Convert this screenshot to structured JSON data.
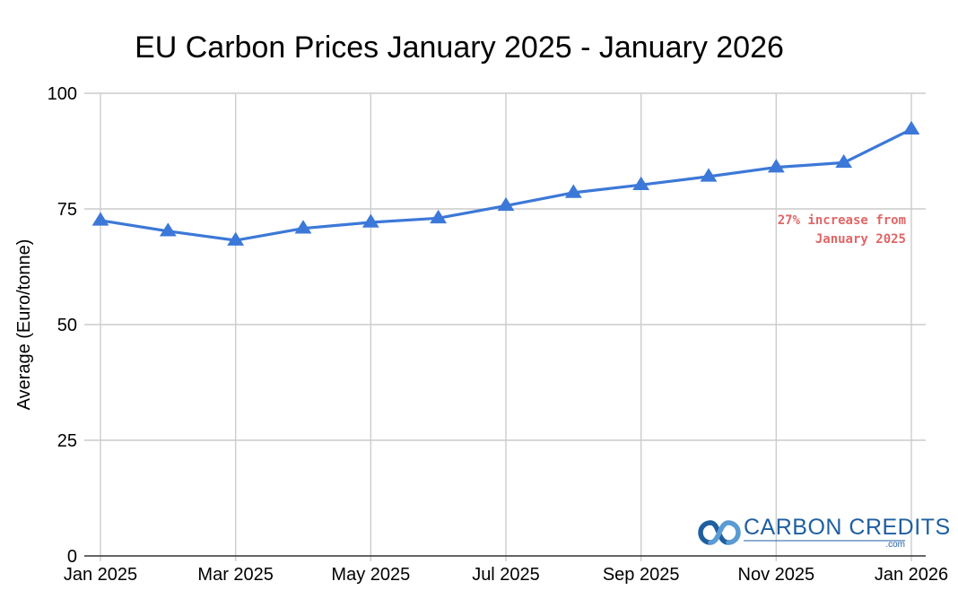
{
  "chart_data": {
    "type": "line",
    "title": "EU Carbon Prices January 2025 - January 2026",
    "xlabel": "",
    "ylabel": "Average (Euro/tonne)",
    "ylim": [
      0,
      100
    ],
    "yticks": [
      0,
      25,
      50,
      75,
      100
    ],
    "grid": true,
    "legend": "none",
    "x": [
      "Jan 2025",
      "Feb 2025",
      "Mar 2025",
      "Apr 2025",
      "May 2025",
      "Jun 2025",
      "Jul 2025",
      "Aug 2025",
      "Sep 2025",
      "Oct 2025",
      "Nov 2025",
      "Dec 2025",
      "Jan 2026"
    ],
    "x_tick_labels": [
      "Jan 2025",
      "",
      "Mar 2025",
      "",
      "May 2025",
      "",
      "Jul 2025",
      "",
      "Sep 2025",
      "",
      "Nov 2025",
      "",
      "Jan 2026"
    ],
    "series": [
      {
        "marker": "triangle",
        "color": "#3c78d8",
        "values": [
          72.5,
          70.2,
          68.2,
          70.8,
          72.1,
          73.0,
          75.7,
          78.5,
          80.2,
          82.0,
          84.0,
          85.0,
          92.2
        ]
      }
    ],
    "annotations": [
      {
        "lines": [
          "27% increase from",
          "January 2025"
        ],
        "color": "#e06666"
      }
    ]
  },
  "logo": {
    "name": "CARBON CREDITS",
    "suffix": ".com",
    "color": "#1f5fa0",
    "icon": "carbon-credits-logo-icon"
  }
}
